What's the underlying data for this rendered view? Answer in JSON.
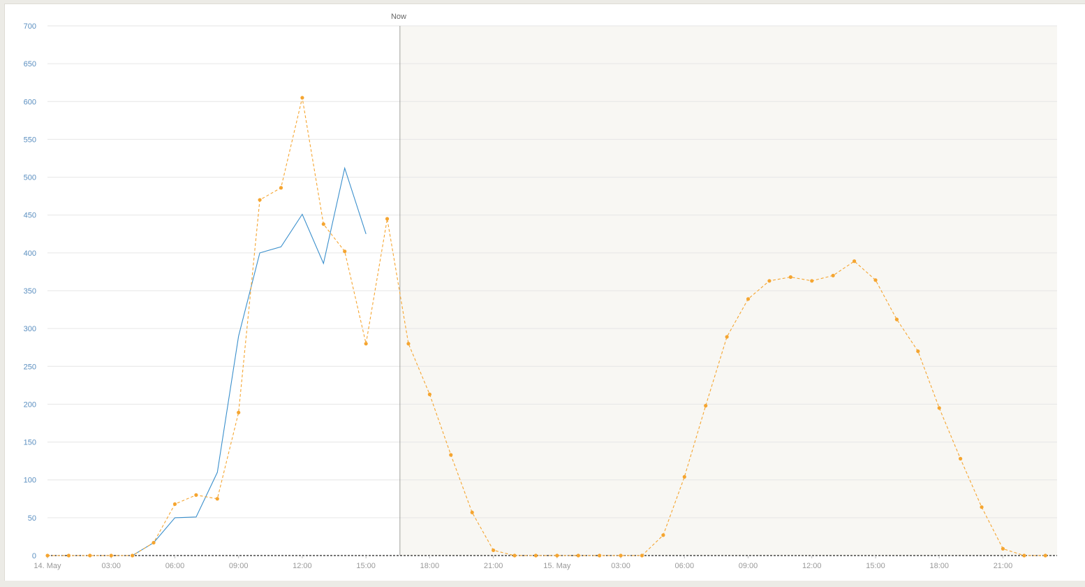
{
  "chart_data": {
    "type": "line",
    "now_label": "Now",
    "y_ticks": [
      0,
      50,
      100,
      150,
      200,
      250,
      300,
      350,
      400,
      450,
      500,
      550,
      600,
      650,
      700
    ],
    "ylim": [
      0,
      700
    ],
    "x_unit": "hour",
    "x_start": "14. May 00:00",
    "x_range_hours": [
      0,
      47.55
    ],
    "now_hour": 16.6,
    "x_ticks": [
      {
        "hour": 0,
        "label": "14. May"
      },
      {
        "hour": 3,
        "label": "03:00"
      },
      {
        "hour": 6,
        "label": "06:00"
      },
      {
        "hour": 9,
        "label": "09:00"
      },
      {
        "hour": 12,
        "label": "12:00"
      },
      {
        "hour": 15,
        "label": "15:00"
      },
      {
        "hour": 18,
        "label": "18:00"
      },
      {
        "hour": 21,
        "label": "21:00"
      },
      {
        "hour": 24,
        "label": "15. May"
      },
      {
        "hour": 27,
        "label": "03:00"
      },
      {
        "hour": 30,
        "label": "06:00"
      },
      {
        "hour": 33,
        "label": "09:00"
      },
      {
        "hour": 36,
        "label": "12:00"
      },
      {
        "hour": 39,
        "label": "15:00"
      },
      {
        "hour": 42,
        "label": "18:00"
      },
      {
        "hour": 45,
        "label": "21:00"
      }
    ],
    "grid": true,
    "series": [
      {
        "style": "solid",
        "color": "#3a8fcc",
        "x": [
          4,
          5,
          6,
          7,
          8,
          9,
          10,
          11,
          12,
          13,
          14,
          15
        ],
        "values": [
          0,
          17,
          50,
          51,
          110,
          290,
          400,
          408,
          451,
          386,
          512,
          425
        ]
      },
      {
        "style": "dashed-markers",
        "color": "#f5a530",
        "x": [
          0,
          1,
          2,
          3,
          4,
          5,
          6,
          7,
          8,
          9,
          10,
          11,
          12,
          13,
          14,
          15,
          16,
          17,
          18,
          19,
          20,
          21,
          22,
          23,
          24,
          25,
          26,
          27,
          28,
          29,
          30,
          31,
          32,
          33,
          34,
          35,
          36,
          37,
          38,
          39,
          40,
          41,
          42,
          43,
          44,
          45,
          46,
          47
        ],
        "values": [
          0,
          0,
          0,
          0,
          0,
          17,
          68,
          80,
          75,
          189,
          470,
          486,
          605,
          438,
          402,
          280,
          445,
          280,
          213,
          133,
          57,
          7,
          0,
          0,
          0,
          0,
          0,
          0,
          0,
          27,
          104,
          198,
          289,
          339,
          363,
          368,
          363,
          370,
          389,
          364,
          312,
          270,
          195,
          128,
          64,
          9,
          0,
          0
        ]
      }
    ]
  },
  "colors": {
    "axis_labels": "#5b8fc0",
    "x_labels": "#999999",
    "grid": "#e6e6e6",
    "forecast_area": "#f8f7f3",
    "now_line": "#a0a09c"
  }
}
